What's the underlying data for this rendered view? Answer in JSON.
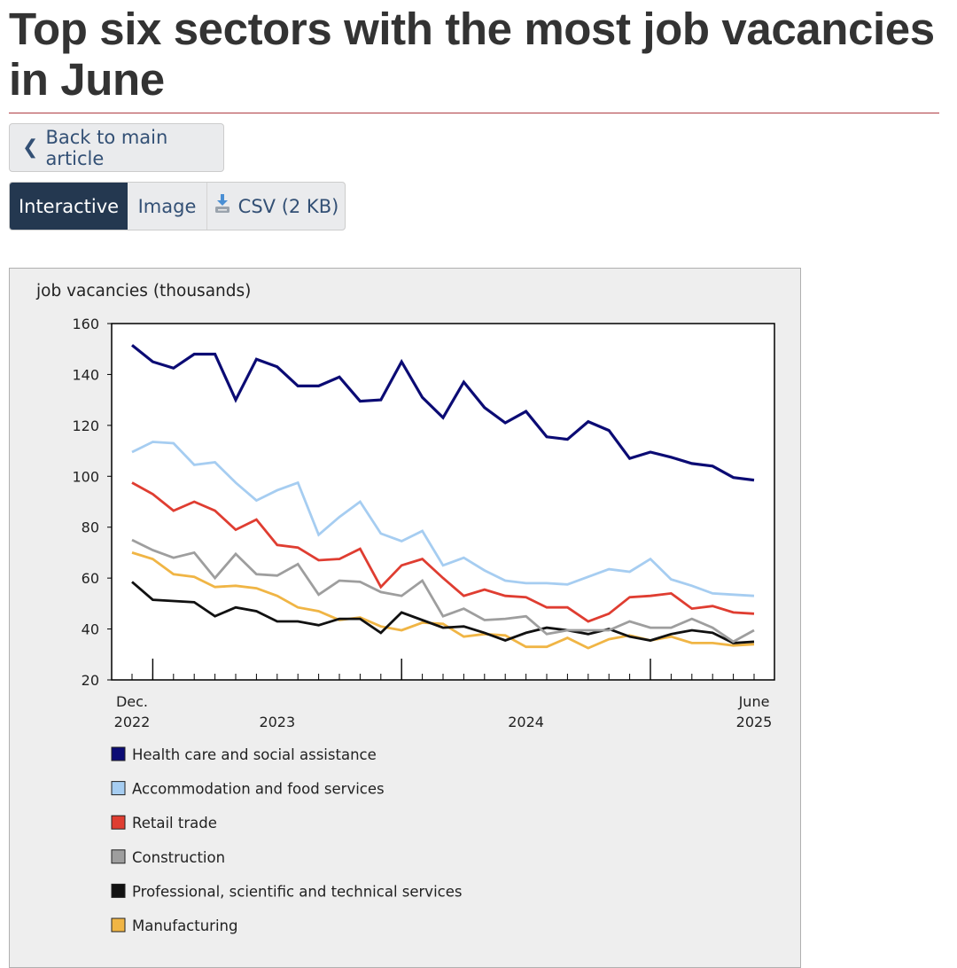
{
  "page": {
    "title": "Top six sectors with the most job vacancies in June",
    "back_label": "Back to main article",
    "tabs": [
      {
        "label": "Interactive",
        "active": true
      },
      {
        "label": "Image",
        "active": false
      },
      {
        "label": "CSV (2 KB)",
        "active": false,
        "icon": "download-icon"
      }
    ]
  },
  "colors": {
    "accent_rule": "#af3c43",
    "active_tab": "#243850",
    "link_text": "#335075"
  },
  "chart_data": {
    "type": "line",
    "ylabel": "job vacancies (thousands)",
    "xlabel": "",
    "ylim": [
      20,
      160
    ],
    "yticks": [
      20,
      40,
      60,
      80,
      100,
      120,
      140,
      160
    ],
    "grid": false,
    "legend_position": "bottom",
    "x_start": "2022-12",
    "x_end": "2025-06",
    "x_tick_labels": [
      {
        "month_index": 0,
        "lines": [
          "Dec.",
          "2022"
        ]
      },
      {
        "month_index": 7,
        "lines": [
          "",
          "2023"
        ]
      },
      {
        "month_index": 19,
        "lines": [
          "",
          "2024"
        ]
      },
      {
        "month_index": 30,
        "lines": [
          "June",
          "2025"
        ]
      }
    ],
    "year_boundary_ticks": [
      1,
      13,
      25
    ],
    "series": [
      {
        "name": "Health care and social assistance",
        "color": "#0b0b74",
        "values": [
          151.5,
          145,
          142.5,
          148,
          148,
          130,
          146,
          143,
          135.5,
          135.5,
          139,
          129.5,
          130,
          145,
          131,
          123,
          137,
          127,
          121,
          125.5,
          115.5,
          114.5,
          121.5,
          118,
          107,
          109.5,
          107.5,
          105,
          104,
          99.5,
          98.5
        ]
      },
      {
        "name": "Accommodation and food services",
        "color": "#a6cdf1",
        "values": [
          109.5,
          113.5,
          113,
          104.5,
          105.5,
          97.5,
          90.5,
          94.5,
          97.5,
          77,
          84,
          90,
          77.5,
          74.5,
          78.5,
          65,
          68,
          63,
          59,
          58,
          58,
          57.5,
          60.5,
          63.5,
          62.5,
          67.5,
          59.5,
          57,
          54,
          53.5,
          53
        ]
      },
      {
        "name": "Retail trade",
        "color": "#df3d31",
        "values": [
          97.5,
          93,
          86.5,
          90,
          86.5,
          79,
          83,
          73,
          72,
          67,
          67.5,
          71.5,
          56.5,
          65,
          67.5,
          60,
          53,
          55.5,
          53,
          52.5,
          48.5,
          48.5,
          43,
          46,
          52.5,
          53,
          54,
          48,
          49,
          46.5,
          46
        ]
      },
      {
        "name": "Construction",
        "color": "#9e9e9e",
        "values": [
          75,
          71,
          68,
          70,
          60,
          69.5,
          61.5,
          61,
          65.5,
          53.5,
          59,
          58.5,
          54.5,
          53,
          59,
          45,
          48,
          43.5,
          44,
          45,
          38,
          39.5,
          39.5,
          39.5,
          43,
          40.5,
          40.5,
          44,
          40.5,
          35,
          39.5
        ]
      },
      {
        "name": "Professional, scientific and technical services",
        "color": "#111111",
        "values": [
          58.5,
          51.5,
          51,
          50.5,
          45,
          48.5,
          47,
          43,
          43,
          41.5,
          44,
          44,
          38.5,
          46.5,
          43.5,
          40.5,
          41,
          38.5,
          35.5,
          38.5,
          40.5,
          39.5,
          38,
          40,
          37,
          35.5,
          38,
          39.5,
          38.5,
          34.5,
          35
        ]
      },
      {
        "name": "Manufacturing",
        "color": "#f0b545",
        "values": [
          70,
          67.5,
          61.5,
          60.5,
          56.5,
          57,
          56,
          53,
          48.5,
          47,
          43.5,
          44.5,
          41,
          39.5,
          42.5,
          42,
          37,
          38,
          37.5,
          33,
          33,
          36.5,
          32.5,
          36,
          37.5,
          35.5,
          37,
          34.5,
          34.5,
          33.5,
          34
        ]
      }
    ]
  }
}
